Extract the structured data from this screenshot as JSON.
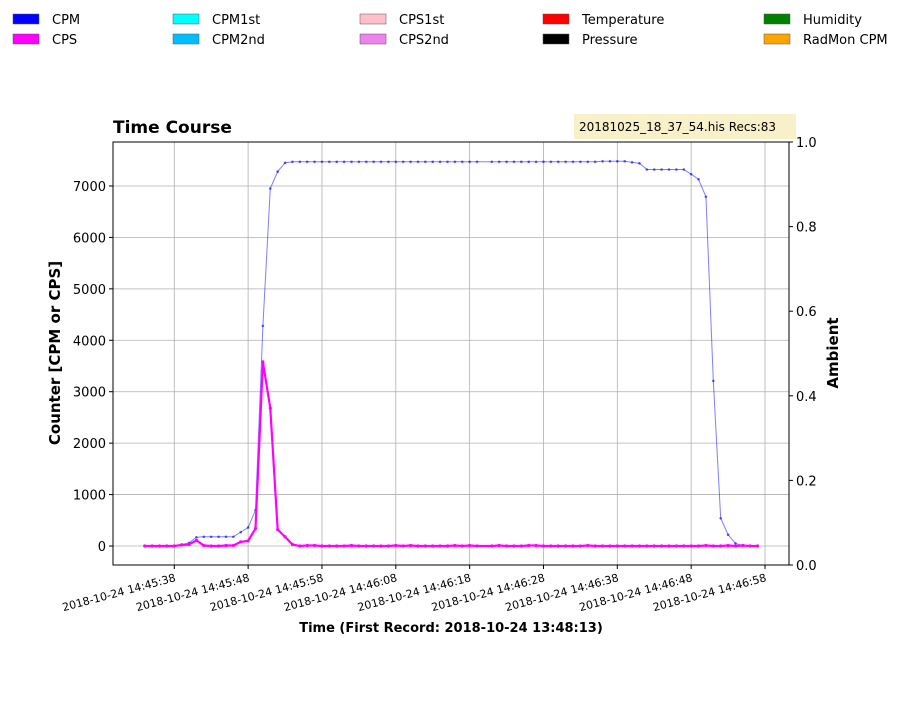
{
  "chart_data": {
    "type": "line",
    "title": "Time Course",
    "annotation": "20181025_18_37_54.his  Recs:83",
    "xlabel": "Time (First Record: 2018-10-24 13:48:13)",
    "ylabel": "Counter  [CPM or CPS]",
    "y2label": "Ambient",
    "grid": true,
    "x": [
      "2018-10-24T14:45:34",
      "2018-10-24T14:45:35",
      "2018-10-24T14:45:36",
      "2018-10-24T14:45:37",
      "2018-10-24T14:45:38",
      "2018-10-24T14:45:39",
      "2018-10-24T14:45:40",
      "2018-10-24T14:45:41",
      "2018-10-24T14:45:42",
      "2018-10-24T14:45:43",
      "2018-10-24T14:45:44",
      "2018-10-24T14:45:45",
      "2018-10-24T14:45:46",
      "2018-10-24T14:45:47",
      "2018-10-24T14:45:48",
      "2018-10-24T14:45:49",
      "2018-10-24T14:45:50",
      "2018-10-24T14:45:51",
      "2018-10-24T14:45:52",
      "2018-10-24T14:45:53",
      "2018-10-24T14:45:54",
      "2018-10-24T14:45:55",
      "2018-10-24T14:45:56",
      "2018-10-24T14:45:57",
      "2018-10-24T14:45:58",
      "2018-10-24T14:45:59",
      "2018-10-24T14:46:00",
      "2018-10-24T14:46:01",
      "2018-10-24T14:46:02",
      "2018-10-24T14:46:03",
      "2018-10-24T14:46:04",
      "2018-10-24T14:46:05",
      "2018-10-24T14:46:06",
      "2018-10-24T14:46:07",
      "2018-10-24T14:46:08",
      "2018-10-24T14:46:09",
      "2018-10-24T14:46:10",
      "2018-10-24T14:46:11",
      "2018-10-24T14:46:12",
      "2018-10-24T14:46:13",
      "2018-10-24T14:46:14",
      "2018-10-24T14:46:15",
      "2018-10-24T14:46:16",
      "2018-10-24T14:46:17",
      "2018-10-24T14:46:18",
      "2018-10-24T14:46:19",
      "2018-10-24T14:46:21",
      "2018-10-24T14:46:22",
      "2018-10-24T14:46:23",
      "2018-10-24T14:46:24",
      "2018-10-24T14:46:25",
      "2018-10-24T14:46:26",
      "2018-10-24T14:46:27",
      "2018-10-24T14:46:28",
      "2018-10-24T14:46:29",
      "2018-10-24T14:46:30",
      "2018-10-24T14:46:31",
      "2018-10-24T14:46:32",
      "2018-10-24T14:46:33",
      "2018-10-24T14:46:34",
      "2018-10-24T14:46:35",
      "2018-10-24T14:46:36",
      "2018-10-24T14:46:37",
      "2018-10-24T14:46:38",
      "2018-10-24T14:46:39",
      "2018-10-24T14:46:40",
      "2018-10-24T14:46:41",
      "2018-10-24T14:46:42",
      "2018-10-24T14:46:43",
      "2018-10-24T14:46:44",
      "2018-10-24T14:46:45",
      "2018-10-24T14:46:46",
      "2018-10-24T14:46:47",
      "2018-10-24T14:46:48",
      "2018-10-24T14:46:49",
      "2018-10-24T14:46:50",
      "2018-10-24T14:46:51",
      "2018-10-24T14:46:52",
      "2018-10-24T14:46:53",
      "2018-10-24T14:46:54",
      "2018-10-24T14:46:55",
      "2018-10-24T14:46:56",
      "2018-10-24T14:46:57"
    ],
    "series": [
      {
        "name": "CPM",
        "color": "#0000ff",
        "values": [
          0,
          0,
          0,
          0,
          0,
          30,
          60,
          170,
          180,
          180,
          180,
          180,
          180,
          270,
          360,
          700,
          4280,
          6950,
          7280,
          7450,
          7470,
          7470,
          7470,
          7470,
          7470,
          7470,
          7470,
          7470,
          7470,
          7470,
          7470,
          7470,
          7470,
          7470,
          7470,
          7470,
          7470,
          7470,
          7470,
          7470,
          7470,
          7470,
          7470,
          7470,
          7470,
          7470,
          7470,
          7470,
          7470,
          7470,
          7470,
          7470,
          7470,
          7470,
          7470,
          7470,
          7470,
          7470,
          7470,
          7470,
          7470,
          7480,
          7480,
          7480,
          7480,
          7460,
          7440,
          7320,
          7320,
          7320,
          7320,
          7320,
          7320,
          7230,
          7130,
          6790,
          3210,
          540,
          220,
          50,
          10,
          0,
          0
        ]
      },
      {
        "name": "CPS",
        "color": "#ff00ff",
        "values": [
          0,
          0,
          0,
          0,
          0,
          20,
          30,
          110,
          10,
          0,
          0,
          10,
          10,
          80,
          100,
          340,
          3580,
          2680,
          320,
          180,
          30,
          0,
          10,
          10,
          0,
          0,
          0,
          0,
          10,
          0,
          0,
          0,
          0,
          0,
          10,
          0,
          10,
          0,
          0,
          0,
          0,
          0,
          10,
          0,
          10,
          0,
          0,
          10,
          0,
          0,
          0,
          10,
          10,
          0,
          0,
          0,
          0,
          0,
          0,
          10,
          0,
          0,
          0,
          0,
          0,
          0,
          0,
          0,
          0,
          0,
          0,
          0,
          0,
          0,
          0,
          10,
          0,
          0,
          10,
          0,
          10,
          0,
          0
        ]
      }
    ],
    "legend_extra": [
      {
        "name": "CPM1st",
        "color": "#00ffff"
      },
      {
        "name": "CPM2nd",
        "color": "#00bfff"
      },
      {
        "name": "CPS1st",
        "color": "#ffc0cb"
      },
      {
        "name": "CPS2nd",
        "color": "#ee82ee"
      },
      {
        "name": "Temperature",
        "color": "#ff0000"
      },
      {
        "name": "Pressure",
        "color": "#000000"
      },
      {
        "name": "Humidity",
        "color": "#008000"
      },
      {
        "name": "RadMon CPM",
        "color": "#ffa500"
      }
    ],
    "xlim": [
      "2018-10-24T14:45:29.7",
      "2018-10-24T14:47:01.25"
    ],
    "xticks": [
      {
        "value": "2018-10-24T14:45:38",
        "label": "2018-10-24  14:45:38"
      },
      {
        "value": "2018-10-24T14:45:48",
        "label": "2018-10-24  14:45:48"
      },
      {
        "value": "2018-10-24T14:45:58",
        "label": "2018-10-24  14:45:58"
      },
      {
        "value": "2018-10-24T14:46:08",
        "label": "2018-10-24  14:46:08"
      },
      {
        "value": "2018-10-24T14:46:18",
        "label": "2018-10-24  14:46:18"
      },
      {
        "value": "2018-10-24T14:46:28",
        "label": "2018-10-24  14:46:28"
      },
      {
        "value": "2018-10-24T14:46:38",
        "label": "2018-10-24  14:46:38"
      },
      {
        "value": "2018-10-24T14:46:48",
        "label": "2018-10-24  14:46:48"
      },
      {
        "value": "2018-10-24T14:46:58",
        "label": "2018-10-24  14:46:58"
      }
    ],
    "ylim": [
      -369,
      7855
    ],
    "yticks": [
      0,
      1000,
      2000,
      3000,
      4000,
      5000,
      6000,
      7000
    ],
    "y2lim": [
      0,
      1
    ],
    "y2ticks": [
      {
        "value": 0,
        "label": "0.0"
      },
      {
        "value": 0.2,
        "label": "0.2"
      },
      {
        "value": 0.4,
        "label": "0.4"
      },
      {
        "value": 0.6,
        "label": "0.6"
      },
      {
        "value": 0.8,
        "label": "0.8"
      },
      {
        "value": 1,
        "label": "1.0"
      }
    ]
  }
}
